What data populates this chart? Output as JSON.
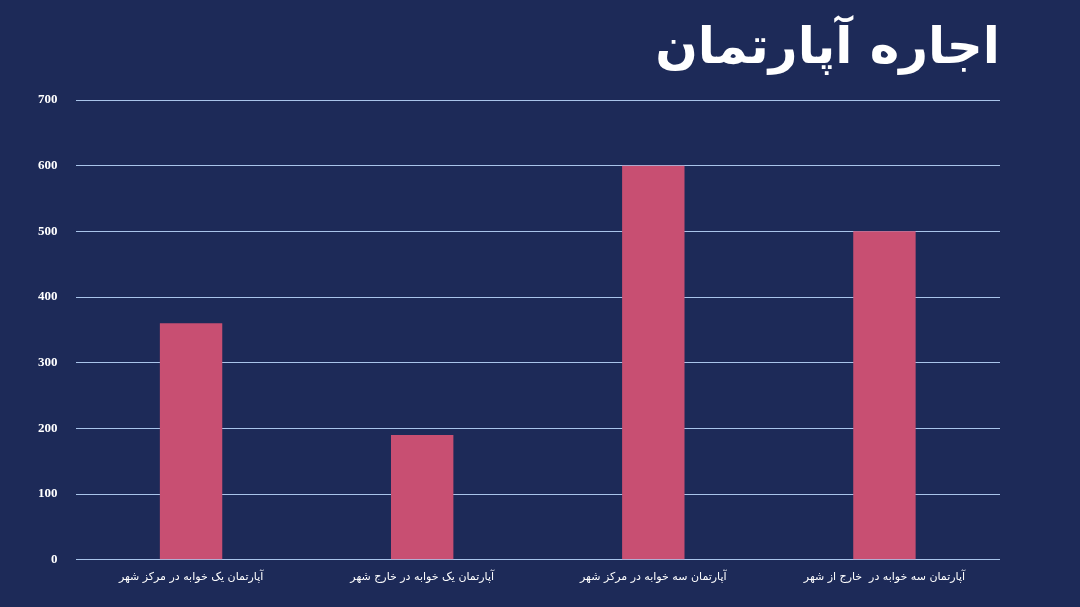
{
  "chart_data": {
    "type": "bar",
    "title": "اجاره آپارتمان",
    "categories": [
      "آپارتمان یک خوابه در مرکز شهر",
      "آپارتمان یک خوابه در خارج شهر",
      "آپارتمان سه خوابه در مرکز شهر",
      "آپارتمان سه خوابه در  خارج از شهر"
    ],
    "values": [
      360,
      190,
      600,
      500
    ],
    "color": "#c84f72",
    "ylim": [
      0,
      700
    ],
    "yticks": [
      0,
      100,
      200,
      300,
      400,
      500,
      600,
      700
    ],
    "grid": "y",
    "legend": false
  }
}
